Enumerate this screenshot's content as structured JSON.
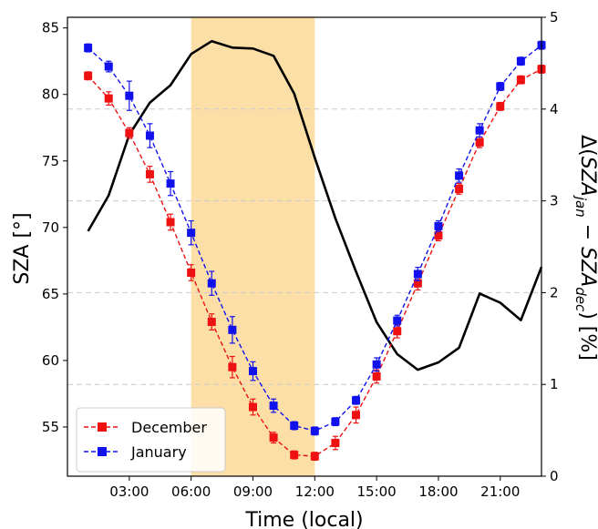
{
  "chart_data": {
    "type": "line",
    "xlabel": "Time (local)",
    "ylabel_left": "SZA [°]",
    "ylabel_right_parts": {
      "delta": "Δ(",
      "sza1": "SZA",
      "sub1": "jan",
      "minus": " − ",
      "sza2": "SZA",
      "sub2": "dec",
      "tail": ") [%]"
    },
    "xlim": [
      0,
      23.0
    ],
    "ylim_left": [
      51.3,
      85.8
    ],
    "ylim_right": [
      0,
      5
    ],
    "x_ticks": [
      3,
      6,
      9,
      12,
      15,
      18,
      21
    ],
    "x_tick_labels": [
      "03:00",
      "06:00",
      "09:00",
      "12:00",
      "15:00",
      "18:00",
      "21:00"
    ],
    "y_ticks_left": [
      55,
      60,
      65,
      70,
      75,
      80,
      85
    ],
    "y_tick_labels_left": [
      "55",
      "60",
      "65",
      "70",
      "75",
      "80",
      "85"
    ],
    "y_ticks_right": [
      0,
      1,
      2,
      3,
      4,
      5
    ],
    "y_tick_labels_right": [
      "0",
      "1",
      "2",
      "3",
      "4",
      "5"
    ],
    "grid": "dashed horizontal at right-axis ticks",
    "shaded_span": {
      "x_start": 6,
      "x_end": 12,
      "color": "#fbd38a"
    },
    "series": [
      {
        "name": "December",
        "axis": "left",
        "color": "#ee1111",
        "style": "dashed-square",
        "x": [
          1,
          2,
          3,
          4,
          5,
          6,
          7,
          8,
          9,
          10,
          11,
          12,
          13,
          14,
          15,
          16,
          17,
          18,
          19,
          20,
          21,
          22,
          23
        ],
        "values": [
          81.4,
          79.7,
          77.1,
          74.0,
          70.4,
          66.6,
          62.9,
          59.5,
          56.5,
          54.2,
          52.9,
          52.8,
          53.8,
          55.9,
          58.8,
          62.2,
          65.8,
          69.4,
          72.9,
          76.4,
          79.1,
          81.1,
          81.9
        ],
        "errors": [
          0.3,
          0.5,
          0.4,
          0.6,
          0.6,
          0.6,
          0.6,
          0.8,
          0.6,
          0.4,
          0.3,
          0.3,
          0.5,
          0.6,
          0.5,
          0.5,
          0.5,
          0.4,
          0.4,
          0.4,
          0.3,
          0.3,
          0.3
        ]
      },
      {
        "name": "January",
        "axis": "left",
        "color": "#1111ee",
        "style": "dashed-square",
        "x": [
          1,
          2,
          3,
          4,
          5,
          6,
          7,
          8,
          9,
          10,
          11,
          12,
          13,
          14,
          15,
          16,
          17,
          18,
          19,
          20,
          21,
          22,
          23
        ],
        "values": [
          83.5,
          82.1,
          79.9,
          76.9,
          73.3,
          69.6,
          65.8,
          62.3,
          59.2,
          56.6,
          55.1,
          54.7,
          55.4,
          57.0,
          59.7,
          63.0,
          66.5,
          70.1,
          73.9,
          77.3,
          80.6,
          82.5,
          83.7
        ],
        "errors": [
          0.3,
          0.4,
          1.1,
          0.9,
          0.9,
          0.9,
          0.9,
          1.0,
          0.7,
          0.5,
          0.3,
          0.3,
          0.3,
          0.3,
          0.5,
          0.4,
          0.5,
          0.4,
          0.5,
          0.5,
          0.3,
          0.3,
          0.3
        ]
      },
      {
        "name": "",
        "axis": "right",
        "color": "#000000",
        "style": "solid",
        "x": [
          1,
          2,
          3,
          4,
          5,
          6,
          7,
          8,
          9,
          10,
          11,
          12,
          13,
          14,
          15,
          16,
          17,
          18,
          19,
          20,
          21,
          22,
          23
        ],
        "values": [
          2.67,
          3.06,
          3.72,
          4.07,
          4.26,
          4.6,
          4.74,
          4.67,
          4.66,
          4.58,
          4.17,
          3.47,
          2.81,
          2.23,
          1.68,
          1.33,
          1.16,
          1.24,
          1.4,
          1.99,
          1.89,
          1.7,
          2.28
        ]
      }
    ],
    "legend": {
      "placement": "bottom-left",
      "entries": [
        "December",
        "January"
      ]
    }
  }
}
